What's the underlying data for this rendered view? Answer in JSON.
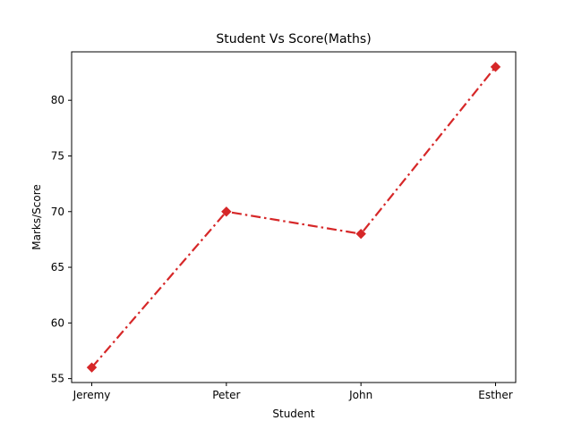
{
  "chart_data": {
    "type": "line",
    "title": "Student Vs Score(Maths)",
    "xlabel": "Student",
    "ylabel": "Marks/Score",
    "categories": [
      "Jeremy",
      "Peter",
      "John",
      "Esther"
    ],
    "series": [
      {
        "values": [
          56,
          70,
          68,
          83
        ]
      }
    ],
    "ylim": [
      54.65,
      84.35
    ],
    "yticks": [
      55,
      60,
      65,
      70,
      75,
      80
    ],
    "grid": false,
    "line_style": "dash-dot",
    "marker": "diamond",
    "colors": {
      "series": "#d62728",
      "axes": "#000000"
    }
  }
}
